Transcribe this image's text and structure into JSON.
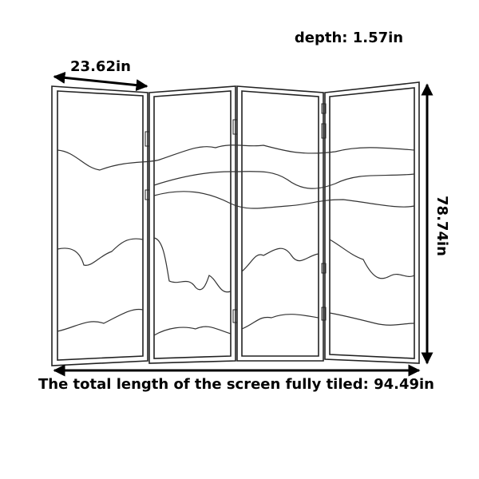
{
  "labels": {
    "depth": "depth: 1.57in",
    "panel_width": "23.62in",
    "height": "78.74in",
    "total_length": "The total length of the screen fully tiled: 94.49in"
  }
}
